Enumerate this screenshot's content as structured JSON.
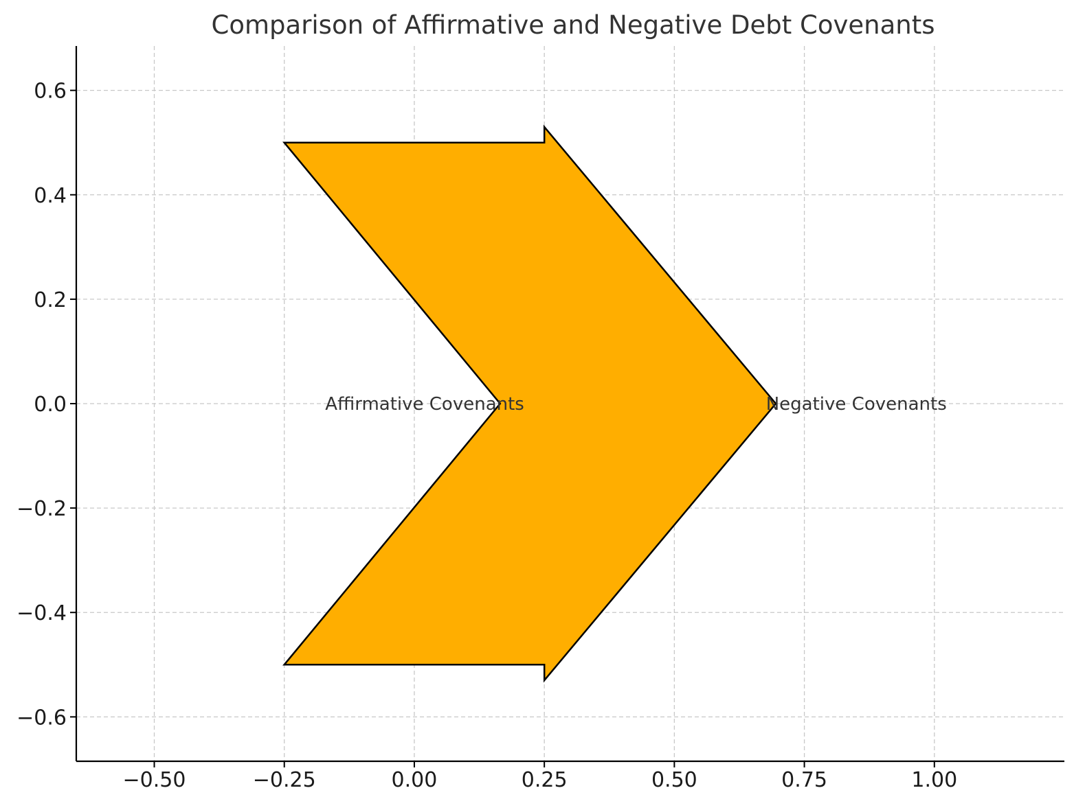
{
  "chart_data": {
    "type": "area",
    "title": "Comparison of Affirmative and Negative Debt Covenants",
    "xlabel": "",
    "ylabel": "",
    "xlim": [
      -0.65,
      1.25
    ],
    "ylim": [
      -0.685,
      0.685
    ],
    "grid": true,
    "x_ticks": [
      -0.5,
      -0.25,
      0.0,
      0.25,
      0.5,
      0.75,
      1.0
    ],
    "x_tick_labels": [
      "−0.50",
      "−0.25",
      "0.00",
      "0.25",
      "0.50",
      "0.75",
      "1.00"
    ],
    "y_ticks": [
      -0.6,
      -0.4,
      -0.2,
      0.0,
      0.2,
      0.4,
      0.6
    ],
    "y_tick_labels": [
      "−0.6",
      "−0.4",
      "−0.2",
      "0.0",
      "0.2",
      "0.4",
      "0.6"
    ],
    "shape": {
      "name": "chevron-arrow",
      "fill": "#FFAE00",
      "stroke": "#000000",
      "points": [
        [
          -0.25,
          0.5
        ],
        [
          0.25,
          0.5
        ],
        [
          0.25,
          0.53
        ],
        [
          0.695,
          0.0
        ],
        [
          0.25,
          -0.53
        ],
        [
          0.25,
          -0.5
        ],
        [
          -0.25,
          -0.5
        ],
        [
          0.165,
          0.0
        ]
      ]
    },
    "annotations": [
      {
        "text": "Affirmative Covenants",
        "x": 0.02,
        "y": 0.0
      },
      {
        "text": "Negative Covenants",
        "x": 0.85,
        "y": 0.0
      }
    ]
  }
}
